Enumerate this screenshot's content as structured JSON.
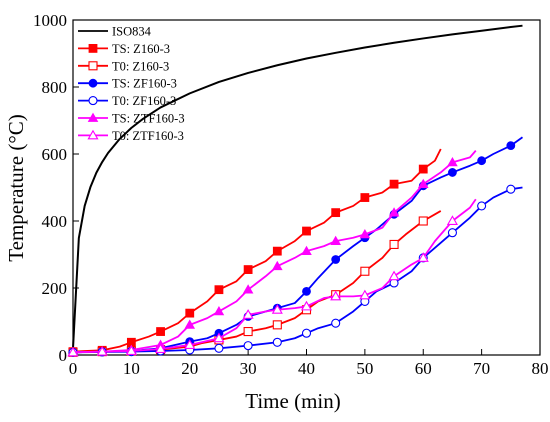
{
  "chart_data": {
    "type": "line",
    "xlabel": "Time (min)",
    "ylabel": "Temperature (°C)",
    "xlim": [
      0,
      80
    ],
    "ylim": [
      0,
      1000
    ],
    "xticks": [
      0,
      10,
      20,
      30,
      40,
      50,
      60,
      70,
      80
    ],
    "yticks": [
      0,
      200,
      400,
      600,
      800,
      1000
    ],
    "grid": false,
    "legend_position": "top-left",
    "series": [
      {
        "name": "ISO834",
        "color": "#000000",
        "marker": "none",
        "x": [
          0,
          1,
          2,
          3,
          4,
          5,
          6,
          8,
          10,
          12,
          15,
          20,
          25,
          30,
          35,
          40,
          45,
          50,
          55,
          60,
          65,
          70,
          75,
          77
        ],
        "y": [
          20,
          349,
          445,
          502,
          544,
          576,
          603,
          645,
          678,
          705,
          739,
          781,
          815,
          842,
          865,
          885,
          902,
          918,
          932,
          945,
          957,
          968,
          979,
          983
        ]
      },
      {
        "name": "TS: Z160-3",
        "color": "#ff0000",
        "marker": "square-filled",
        "x": [
          0,
          2,
          5,
          8,
          10,
          13,
          15,
          18,
          20,
          23,
          25,
          28,
          30,
          33,
          35,
          38,
          40,
          43,
          45,
          48,
          50,
          53,
          55,
          58,
          60,
          62,
          63
        ],
        "y": [
          10,
          12,
          14,
          25,
          38,
          55,
          70,
          95,
          125,
          160,
          195,
          220,
          255,
          280,
          310,
          340,
          370,
          395,
          425,
          445,
          470,
          485,
          510,
          520,
          555,
          580,
          615
        ],
        "marker_x": [
          0,
          5,
          10,
          15,
          20,
          25,
          30,
          35,
          40,
          45,
          50,
          55,
          60
        ]
      },
      {
        "name": "T0: Z160-3",
        "color": "#ff0000",
        "marker": "square-open",
        "x": [
          0,
          5,
          10,
          15,
          20,
          22,
          25,
          28,
          30,
          33,
          35,
          38,
          40,
          42,
          45,
          48,
          50,
          53,
          55,
          57,
          60,
          62,
          63
        ],
        "y": [
          8,
          10,
          12,
          16,
          25,
          35,
          45,
          55,
          70,
          80,
          90,
          110,
          135,
          160,
          180,
          215,
          250,
          290,
          330,
          360,
          400,
          420,
          430
        ],
        "marker_x": [
          0,
          5,
          10,
          15,
          20,
          25,
          30,
          35,
          40,
          45,
          50,
          55,
          60
        ]
      },
      {
        "name": "TS: ZF160-3",
        "color": "#0000ff",
        "marker": "circle-filled",
        "x": [
          0,
          5,
          10,
          15,
          20,
          23,
          25,
          28,
          30,
          33,
          35,
          38,
          40,
          42,
          45,
          48,
          50,
          52,
          55,
          58,
          60,
          63,
          65,
          68,
          70,
          72,
          75,
          77
        ],
        "y": [
          8,
          10,
          12,
          20,
          40,
          50,
          65,
          90,
          115,
          130,
          140,
          155,
          190,
          230,
          285,
          325,
          350,
          375,
          420,
          460,
          505,
          530,
          545,
          565,
          580,
          600,
          625,
          650
        ],
        "marker_x": [
          0,
          5,
          10,
          15,
          20,
          25,
          30,
          35,
          40,
          45,
          50,
          55,
          60,
          65,
          70,
          75
        ]
      },
      {
        "name": "T0: ZF160-3",
        "color": "#0000ff",
        "marker": "circle-open",
        "x": [
          0,
          5,
          10,
          15,
          20,
          25,
          30,
          35,
          38,
          40,
          42,
          45,
          48,
          50,
          52,
          55,
          58,
          60,
          62,
          65,
          68,
          70,
          72,
          75,
          77
        ],
        "y": [
          8,
          9,
          10,
          12,
          15,
          20,
          28,
          38,
          50,
          65,
          80,
          95,
          130,
          160,
          190,
          215,
          250,
          290,
          320,
          365,
          410,
          445,
          470,
          495,
          500
        ],
        "marker_x": [
          0,
          5,
          10,
          15,
          20,
          25,
          30,
          35,
          40,
          45,
          50,
          55,
          60,
          65,
          70,
          75
        ]
      },
      {
        "name": "TS: ZTF160-3",
        "color": "#ff00ff",
        "marker": "triangle-filled",
        "x": [
          0,
          5,
          10,
          15,
          18,
          20,
          23,
          25,
          28,
          30,
          33,
          35,
          38,
          40,
          43,
          45,
          48,
          50,
          53,
          55,
          58,
          60,
          63,
          65,
          68,
          69
        ],
        "y": [
          8,
          10,
          15,
          30,
          55,
          90,
          110,
          130,
          160,
          195,
          235,
          265,
          290,
          310,
          325,
          340,
          350,
          360,
          380,
          425,
          470,
          510,
          545,
          575,
          590,
          610
        ],
        "marker_x": [
          0,
          5,
          10,
          15,
          20,
          25,
          30,
          35,
          40,
          45,
          50,
          55,
          60,
          65
        ]
      },
      {
        "name": "T0: ZTF160-3",
        "color": "#ff00ff",
        "marker": "triangle-open",
        "x": [
          0,
          5,
          10,
          15,
          20,
          25,
          28,
          30,
          33,
          35,
          38,
          40,
          43,
          45,
          48,
          50,
          53,
          55,
          58,
          60,
          62,
          65,
          68,
          69
        ],
        "y": [
          8,
          10,
          12,
          18,
          30,
          50,
          80,
          120,
          130,
          135,
          140,
          145,
          170,
          175,
          175,
          178,
          200,
          235,
          270,
          290,
          340,
          400,
          440,
          465
        ],
        "marker_x": [
          0,
          5,
          10,
          15,
          20,
          25,
          30,
          35,
          40,
          45,
          50,
          55,
          60,
          65
        ]
      }
    ]
  }
}
